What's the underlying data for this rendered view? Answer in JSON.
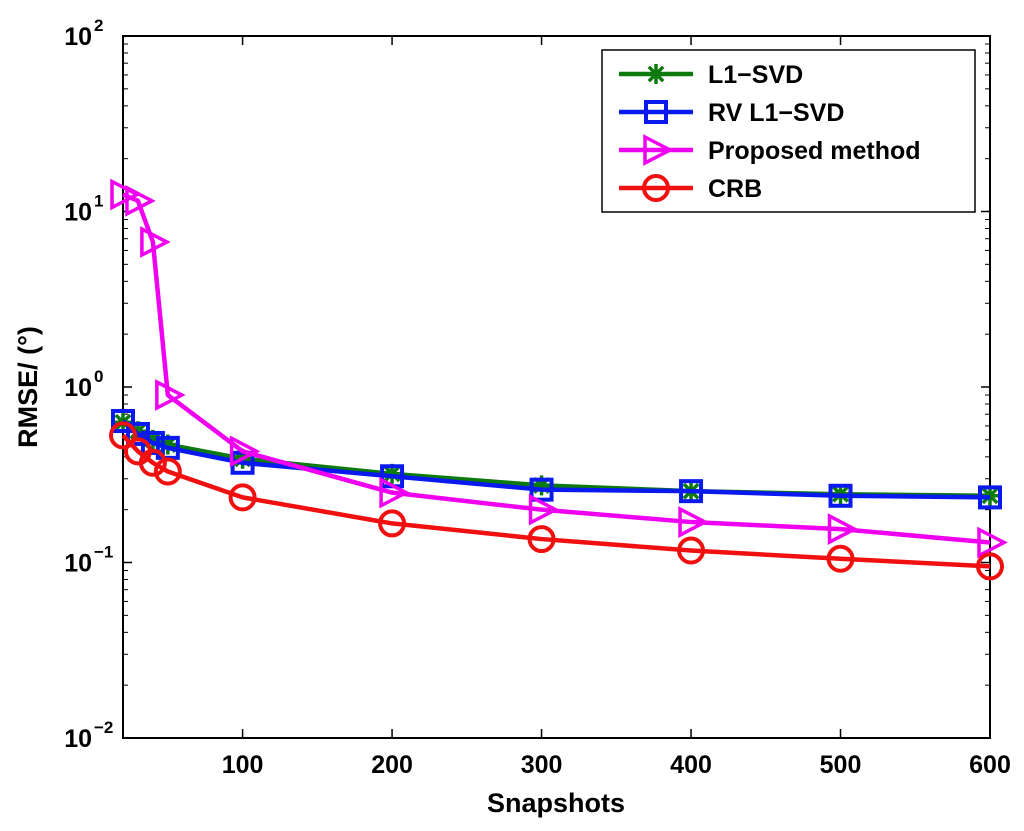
{
  "chart_data": {
    "type": "line",
    "title": "",
    "xlabel": "Snapshots",
    "ylabel": "RMSE/ (°)",
    "x_scale": "linear",
    "y_scale": "log",
    "xlim": [
      20,
      600
    ],
    "ylim": [
      0.01,
      100
    ],
    "x_ticks": [
      100,
      200,
      300,
      400,
      500,
      600
    ],
    "x_tick_labels": [
      "100",
      "200",
      "300",
      "400",
      "500",
      "600"
    ],
    "y_ticks": [
      0.01,
      0.1,
      1,
      10,
      100
    ],
    "y_tick_labels": [
      {
        "base": "10",
        "exp": "−2"
      },
      {
        "base": "10",
        "exp": "−1"
      },
      {
        "base": "10",
        "exp": "0"
      },
      {
        "base": "10",
        "exp": "1"
      },
      {
        "base": "10",
        "exp": "2"
      }
    ],
    "legend_position": "top-right",
    "series": [
      {
        "name": "L1−SVD",
        "color": "#0c7a0c",
        "marker": "asterisk",
        "x": [
          20,
          30,
          40,
          50,
          100,
          200,
          300,
          400,
          500,
          600
        ],
        "y": [
          0.63,
          0.56,
          0.5,
          0.47,
          0.39,
          0.32,
          0.275,
          0.255,
          0.245,
          0.24
        ]
      },
      {
        "name": "RV L1−SVD",
        "color": "#0a1aef",
        "marker": "square",
        "x": [
          20,
          30,
          40,
          50,
          100,
          200,
          300,
          400,
          500,
          600
        ],
        "y": [
          0.64,
          0.54,
          0.48,
          0.45,
          0.37,
          0.31,
          0.26,
          0.255,
          0.24,
          0.235
        ]
      },
      {
        "name": "Proposed method",
        "color": "#f000f0",
        "marker": "triangle-right",
        "x": [
          20,
          30,
          40,
          50,
          100,
          200,
          300,
          400,
          500,
          600
        ],
        "y": [
          12.5,
          11.5,
          6.7,
          0.9,
          0.43,
          0.25,
          0.2,
          0.17,
          0.155,
          0.13
        ]
      },
      {
        "name": "CRB",
        "color": "#f01010",
        "marker": "circle",
        "x": [
          20,
          30,
          40,
          50,
          100,
          200,
          300,
          400,
          500,
          600
        ],
        "y": [
          0.53,
          0.43,
          0.37,
          0.33,
          0.235,
          0.167,
          0.136,
          0.117,
          0.105,
          0.095
        ]
      }
    ]
  }
}
